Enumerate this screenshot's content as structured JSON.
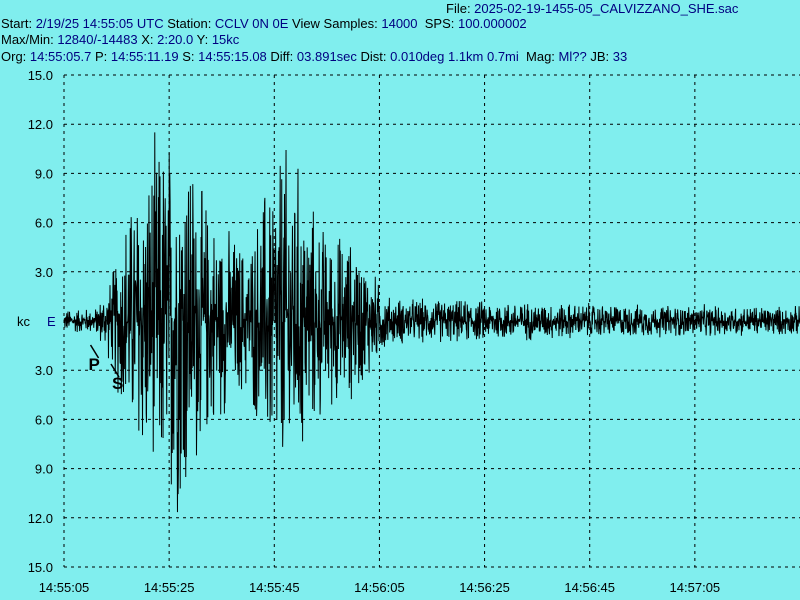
{
  "header": {
    "file_label": "File: ",
    "file_value": "2025-02-19-1455-05_CALVIZZANO_SHE.sac",
    "start_label": "Start: ",
    "start_value": "2/19/25 14:55:05 UTC",
    "station_label": " Station: ",
    "station_value": "CCLV 0N 0E",
    "view_label": " View Samples: ",
    "view_value": "14000",
    "sps_label": "  SPS: ",
    "sps_value": "100.000002",
    "maxmin_label": "Max/Min: ",
    "maxmin_value": "12840/-14483",
    "x_label": " X: ",
    "x_value": "2:20.0",
    "y_label": " Y: ",
    "y_value": "15kc",
    "org_label": "Org: ",
    "org_value": "14:55:05.7",
    "p_label": " P: ",
    "p_value": "14:55:11.19",
    "s_label": " S: ",
    "s_value": "14:55:15.08",
    "diff_label": " Diff: ",
    "diff_value": "03.891sec",
    "dist_label": " Dist: ",
    "dist_value": "0.010deg 1.1km 0.7mi",
    "mag_label": "  Mag: ",
    "mag_value": "Ml??",
    "jb_label": " JB: ",
    "jb_value": "33"
  },
  "chart_data": {
    "type": "line",
    "ylabel": "kc",
    "channel": "E",
    "y_ticks": [
      "15.0",
      "12.0",
      "9.0",
      "6.0",
      "3.0",
      "3.0",
      "6.0",
      "9.0",
      "12.0",
      "15.0"
    ],
    "x_ticks": [
      "14:55:05",
      "14:55:25",
      "14:55:45",
      "14:56:05",
      "14:56:25",
      "14:56:45",
      "14:57:05"
    ],
    "ylim": [
      -15,
      15
    ],
    "x_range_sec": [
      0,
      140
    ],
    "grid": true,
    "markers": [
      {
        "label": "P",
        "time_sec": 6.19
      },
      {
        "label": "S",
        "time_sec": 10.08
      }
    ],
    "series": [
      {
        "values": [
          {
            "t": 0,
            "amp": 0.8
          },
          {
            "t": 6,
            "amp": 0.9
          },
          {
            "t": 9,
            "amp": 3
          },
          {
            "t": 12,
            "amp": 8
          },
          {
            "t": 15,
            "amp": 10
          },
          {
            "t": 17,
            "amp": 12
          },
          {
            "t": 20,
            "amp": 13
          },
          {
            "t": 23,
            "amp": 14
          },
          {
            "t": 26,
            "amp": 9
          },
          {
            "t": 29,
            "amp": 7
          },
          {
            "t": 32,
            "amp": 6
          },
          {
            "t": 35,
            "amp": 5
          },
          {
            "t": 38,
            "amp": 9
          },
          {
            "t": 41,
            "amp": 12
          },
          {
            "t": 44,
            "amp": 11
          },
          {
            "t": 47,
            "amp": 8
          },
          {
            "t": 50,
            "amp": 6
          },
          {
            "t": 53,
            "amp": 6
          },
          {
            "t": 56,
            "amp": 5
          },
          {
            "t": 58,
            "amp": 4
          },
          {
            "t": 60,
            "amp": 2.5
          },
          {
            "t": 62,
            "amp": 1.6
          },
          {
            "t": 70,
            "amp": 1.5
          },
          {
            "t": 90,
            "amp": 1.3
          },
          {
            "t": 110,
            "amp": 1.1
          },
          {
            "t": 140,
            "amp": 1.0
          }
        ]
      }
    ],
    "peak_max": 12.84,
    "peak_min": -14.483
  },
  "colors": {
    "background": "#80eeee",
    "trace": "#000000",
    "header_value": "#000080",
    "grid": "#000000"
  }
}
